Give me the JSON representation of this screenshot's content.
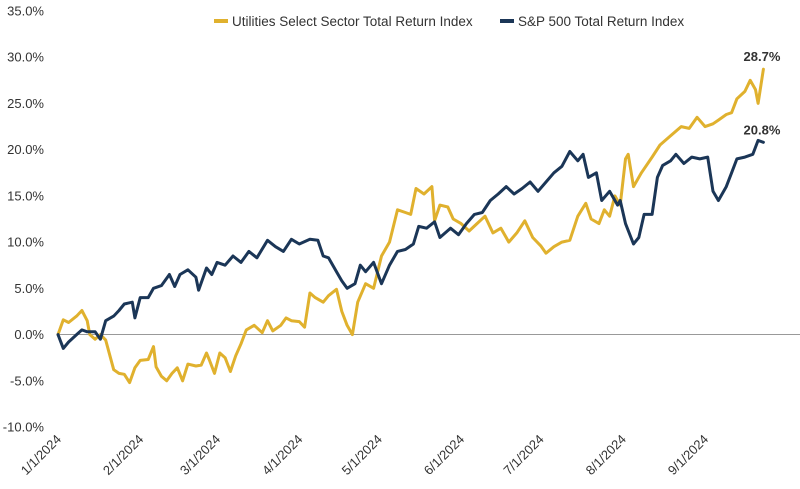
{
  "chart_data": {
    "type": "line",
    "title": "",
    "xlabel": "",
    "ylabel": "",
    "ylim": [
      -10,
      35
    ],
    "xlim": [
      "2024-01-01",
      "2024-09-30"
    ],
    "y_ticks": [
      "35.0%",
      "30.0%",
      "25.0%",
      "20.0%",
      "15.0%",
      "10.0%",
      "5.0%",
      "0.0%",
      "-5.0%",
      "-10.0%"
    ],
    "x_ticks": [
      "1/1/2024",
      "2/1/2024",
      "3/1/2024",
      "4/1/2024",
      "5/1/2024",
      "6/1/2024",
      "7/1/2024",
      "8/1/2024",
      "9/1/2024"
    ],
    "legend_position": "top",
    "grid": false,
    "series": [
      {
        "name": "Utilities Select Sector Total Return Index",
        "color": "#E0B12E",
        "end_label": "28.7%",
        "points": [
          [
            "2024-01-01",
            0.0
          ],
          [
            "2024-01-03",
            1.6
          ],
          [
            "2024-01-05",
            1.3
          ],
          [
            "2024-01-08",
            2.0
          ],
          [
            "2024-01-10",
            2.6
          ],
          [
            "2024-01-12",
            1.5
          ],
          [
            "2024-01-13",
            0.0
          ],
          [
            "2024-01-15",
            -0.5
          ],
          [
            "2024-01-17",
            0.0
          ],
          [
            "2024-01-19",
            -0.6
          ],
          [
            "2024-01-22",
            -3.8
          ],
          [
            "2024-01-24",
            -4.2
          ],
          [
            "2024-01-26",
            -4.3
          ],
          [
            "2024-01-28",
            -5.2
          ],
          [
            "2024-01-30",
            -3.6
          ],
          [
            "2024-02-01",
            -2.8
          ],
          [
            "2024-02-04",
            -2.7
          ],
          [
            "2024-02-06",
            -1.3
          ],
          [
            "2024-02-07",
            -3.5
          ],
          [
            "2024-02-09",
            -4.5
          ],
          [
            "2024-02-11",
            -5.0
          ],
          [
            "2024-02-13",
            -4.2
          ],
          [
            "2024-02-15",
            -3.6
          ],
          [
            "2024-02-17",
            -5.0
          ],
          [
            "2024-02-19",
            -3.2
          ],
          [
            "2024-02-22",
            -3.4
          ],
          [
            "2024-02-24",
            -3.3
          ],
          [
            "2024-02-26",
            -2.0
          ],
          [
            "2024-02-27",
            -2.7
          ],
          [
            "2024-02-29",
            -4.2
          ],
          [
            "2024-03-02",
            -2.0
          ],
          [
            "2024-03-04",
            -2.5
          ],
          [
            "2024-03-06",
            -4.0
          ],
          [
            "2024-03-08",
            -2.3
          ],
          [
            "2024-03-10",
            -1.0
          ],
          [
            "2024-03-12",
            0.5
          ],
          [
            "2024-03-15",
            1.0
          ],
          [
            "2024-03-18",
            0.2
          ],
          [
            "2024-03-20",
            1.5
          ],
          [
            "2024-03-22",
            0.4
          ],
          [
            "2024-03-25",
            1.0
          ],
          [
            "2024-03-27",
            1.8
          ],
          [
            "2024-03-29",
            1.5
          ],
          [
            "2024-04-01",
            1.4
          ],
          [
            "2024-04-03",
            0.8
          ],
          [
            "2024-04-05",
            4.5
          ],
          [
            "2024-04-07",
            4.0
          ],
          [
            "2024-04-10",
            3.5
          ],
          [
            "2024-04-12",
            4.2
          ],
          [
            "2024-04-15",
            4.9
          ],
          [
            "2024-04-17",
            2.5
          ],
          [
            "2024-04-19",
            1.0
          ],
          [
            "2024-04-21",
            0.0
          ],
          [
            "2024-04-23",
            3.5
          ],
          [
            "2024-04-26",
            5.5
          ],
          [
            "2024-04-29",
            5.0
          ],
          [
            "2024-05-02",
            8.5
          ],
          [
            "2024-05-05",
            10.0
          ],
          [
            "2024-05-08",
            13.5
          ],
          [
            "2024-05-11",
            13.2
          ],
          [
            "2024-05-13",
            13.0
          ],
          [
            "2024-05-15",
            15.8
          ],
          [
            "2024-05-18",
            15.2
          ],
          [
            "2024-05-21",
            16.0
          ],
          [
            "2024-05-22",
            12.3
          ],
          [
            "2024-05-24",
            14.0
          ],
          [
            "2024-05-27",
            13.8
          ],
          [
            "2024-05-29",
            12.5
          ],
          [
            "2024-06-01",
            12.0
          ],
          [
            "2024-06-04",
            11.2
          ],
          [
            "2024-06-07",
            12.0
          ],
          [
            "2024-06-10",
            12.8
          ],
          [
            "2024-06-13",
            11.0
          ],
          [
            "2024-06-16",
            11.5
          ],
          [
            "2024-06-19",
            10.0
          ],
          [
            "2024-06-22",
            11.0
          ],
          [
            "2024-06-25",
            12.3
          ],
          [
            "2024-06-28",
            10.5
          ],
          [
            "2024-07-01",
            9.6
          ],
          [
            "2024-07-03",
            8.8
          ],
          [
            "2024-07-06",
            9.5
          ],
          [
            "2024-07-09",
            10.0
          ],
          [
            "2024-07-12",
            10.2
          ],
          [
            "2024-07-15",
            12.8
          ],
          [
            "2024-07-18",
            14.2
          ],
          [
            "2024-07-20",
            12.5
          ],
          [
            "2024-07-23",
            12.0
          ],
          [
            "2024-07-25",
            13.5
          ],
          [
            "2024-07-27",
            12.8
          ],
          [
            "2024-07-29",
            15.0
          ],
          [
            "2024-07-31",
            14.0
          ],
          [
            "2024-08-02",
            19.0
          ],
          [
            "2024-08-03",
            19.5
          ],
          [
            "2024-08-05",
            16.0
          ],
          [
            "2024-08-08",
            17.5
          ],
          [
            "2024-08-12",
            19.2
          ],
          [
            "2024-08-15",
            20.5
          ],
          [
            "2024-08-19",
            21.5
          ],
          [
            "2024-08-23",
            22.5
          ],
          [
            "2024-08-26",
            22.3
          ],
          [
            "2024-08-29",
            23.5
          ],
          [
            "2024-09-01",
            22.5
          ],
          [
            "2024-09-04",
            22.8
          ],
          [
            "2024-09-06",
            23.2
          ],
          [
            "2024-09-09",
            23.8
          ],
          [
            "2024-09-11",
            24.0
          ],
          [
            "2024-09-13",
            25.5
          ],
          [
            "2024-09-16",
            26.3
          ],
          [
            "2024-09-18",
            27.5
          ],
          [
            "2024-09-20",
            26.5
          ],
          [
            "2024-09-21",
            25.0
          ],
          [
            "2024-09-23",
            28.7
          ]
        ]
      },
      {
        "name": "S&P 500 Total Return Index",
        "color": "#1B3657",
        "end_label": "20.8%",
        "points": [
          [
            "2024-01-01",
            0.0
          ],
          [
            "2024-01-03",
            -1.5
          ],
          [
            "2024-01-05",
            -0.8
          ],
          [
            "2024-01-08",
            0.0
          ],
          [
            "2024-01-10",
            0.5
          ],
          [
            "2024-01-12",
            0.3
          ],
          [
            "2024-01-15",
            0.3
          ],
          [
            "2024-01-17",
            -0.5
          ],
          [
            "2024-01-19",
            1.5
          ],
          [
            "2024-01-22",
            2.0
          ],
          [
            "2024-01-24",
            2.6
          ],
          [
            "2024-01-26",
            3.3
          ],
          [
            "2024-01-29",
            3.5
          ],
          [
            "2024-01-30",
            1.8
          ],
          [
            "2024-02-01",
            4.0
          ],
          [
            "2024-02-04",
            4.0
          ],
          [
            "2024-02-06",
            5.0
          ],
          [
            "2024-02-09",
            5.3
          ],
          [
            "2024-02-12",
            6.5
          ],
          [
            "2024-02-14",
            5.2
          ],
          [
            "2024-02-16",
            6.5
          ],
          [
            "2024-02-19",
            7.0
          ],
          [
            "2024-02-22",
            6.2
          ],
          [
            "2024-02-23",
            4.8
          ],
          [
            "2024-02-26",
            7.2
          ],
          [
            "2024-02-28",
            6.5
          ],
          [
            "2024-03-01",
            7.8
          ],
          [
            "2024-03-04",
            7.5
          ],
          [
            "2024-03-07",
            8.5
          ],
          [
            "2024-03-10",
            7.8
          ],
          [
            "2024-03-13",
            9.0
          ],
          [
            "2024-03-16",
            8.3
          ],
          [
            "2024-03-20",
            10.2
          ],
          [
            "2024-03-23",
            9.5
          ],
          [
            "2024-03-26",
            9.0
          ],
          [
            "2024-03-29",
            10.3
          ],
          [
            "2024-04-01",
            9.8
          ],
          [
            "2024-04-05",
            10.3
          ],
          [
            "2024-04-08",
            10.2
          ],
          [
            "2024-04-10",
            8.5
          ],
          [
            "2024-04-12",
            8.3
          ],
          [
            "2024-04-15",
            6.8
          ],
          [
            "2024-04-17",
            5.8
          ],
          [
            "2024-04-19",
            5.0
          ],
          [
            "2024-04-22",
            5.5
          ],
          [
            "2024-04-24",
            7.5
          ],
          [
            "2024-04-26",
            6.8
          ],
          [
            "2024-04-29",
            7.8
          ],
          [
            "2024-05-02",
            5.5
          ],
          [
            "2024-05-05",
            7.5
          ],
          [
            "2024-05-08",
            9.0
          ],
          [
            "2024-05-11",
            9.2
          ],
          [
            "2024-05-14",
            9.8
          ],
          [
            "2024-05-16",
            11.7
          ],
          [
            "2024-05-19",
            11.5
          ],
          [
            "2024-05-22",
            12.2
          ],
          [
            "2024-05-24",
            10.5
          ],
          [
            "2024-05-28",
            11.5
          ],
          [
            "2024-05-31",
            10.8
          ],
          [
            "2024-06-03",
            12.0
          ],
          [
            "2024-06-06",
            13.0
          ],
          [
            "2024-06-09",
            13.2
          ],
          [
            "2024-06-12",
            14.5
          ],
          [
            "2024-06-15",
            15.2
          ],
          [
            "2024-06-18",
            16.0
          ],
          [
            "2024-06-21",
            15.2
          ],
          [
            "2024-06-24",
            15.8
          ],
          [
            "2024-06-27",
            16.5
          ],
          [
            "2024-06-30",
            15.5
          ],
          [
            "2024-07-03",
            16.5
          ],
          [
            "2024-07-06",
            17.5
          ],
          [
            "2024-07-09",
            18.2
          ],
          [
            "2024-07-12",
            19.8
          ],
          [
            "2024-07-15",
            18.8
          ],
          [
            "2024-07-17",
            19.5
          ],
          [
            "2024-07-19",
            17.0
          ],
          [
            "2024-07-22",
            17.5
          ],
          [
            "2024-07-24",
            14.5
          ],
          [
            "2024-07-27",
            15.5
          ],
          [
            "2024-07-30",
            14.0
          ],
          [
            "2024-07-31",
            14.5
          ],
          [
            "2024-08-02",
            12.0
          ],
          [
            "2024-08-05",
            9.8
          ],
          [
            "2024-08-07",
            10.5
          ],
          [
            "2024-08-09",
            13.0
          ],
          [
            "2024-08-12",
            13.0
          ],
          [
            "2024-08-14",
            17.0
          ],
          [
            "2024-08-16",
            18.3
          ],
          [
            "2024-08-19",
            18.8
          ],
          [
            "2024-08-21",
            19.5
          ],
          [
            "2024-08-24",
            18.5
          ],
          [
            "2024-08-27",
            19.2
          ],
          [
            "2024-08-30",
            19.0
          ],
          [
            "2024-09-02",
            19.2
          ],
          [
            "2024-09-04",
            15.5
          ],
          [
            "2024-09-06",
            14.5
          ],
          [
            "2024-09-09",
            16.0
          ],
          [
            "2024-09-11",
            17.5
          ],
          [
            "2024-09-13",
            19.0
          ],
          [
            "2024-09-16",
            19.2
          ],
          [
            "2024-09-19",
            19.5
          ],
          [
            "2024-09-21",
            21.0
          ],
          [
            "2024-09-23",
            20.8
          ]
        ]
      }
    ]
  }
}
